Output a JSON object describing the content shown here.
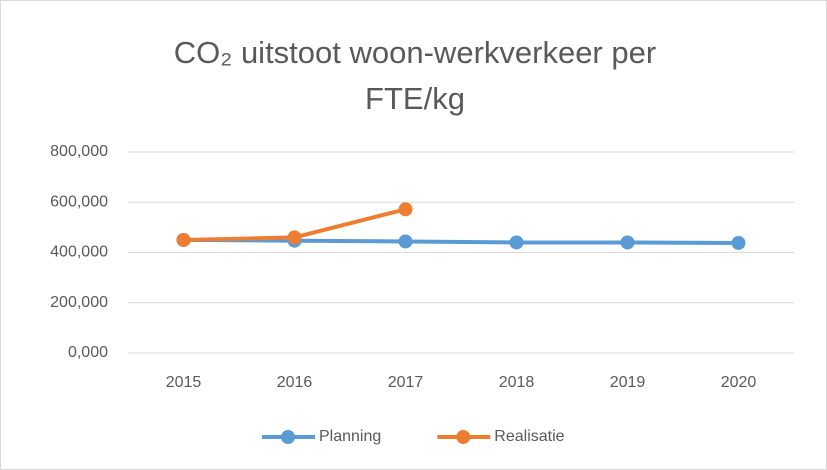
{
  "chart_data": {
    "type": "line",
    "title": "CO₂ uitstoot woon-werkverkeer per FTE/kg",
    "categories": [
      "2015",
      "2016",
      "2017",
      "2018",
      "2019",
      "2020"
    ],
    "series": [
      {
        "name": "Planning",
        "color": "#5b9bd5",
        "values": [
          450,
          447,
          444,
          440,
          440,
          438
        ]
      },
      {
        "name": "Realisatie",
        "color": "#ed7d31",
        "values": [
          450,
          460,
          572,
          null,
          null,
          null
        ]
      }
    ],
    "ylim": [
      0,
      800
    ],
    "yticks": [
      {
        "value": 0,
        "label": "0,000"
      },
      {
        "value": 200,
        "label": "200,000"
      },
      {
        "value": 400,
        "label": "400,000"
      },
      {
        "value": 600,
        "label": "600,000"
      },
      {
        "value": 800,
        "label": "800,000"
      }
    ],
    "grid": true,
    "legend": "bottom"
  }
}
